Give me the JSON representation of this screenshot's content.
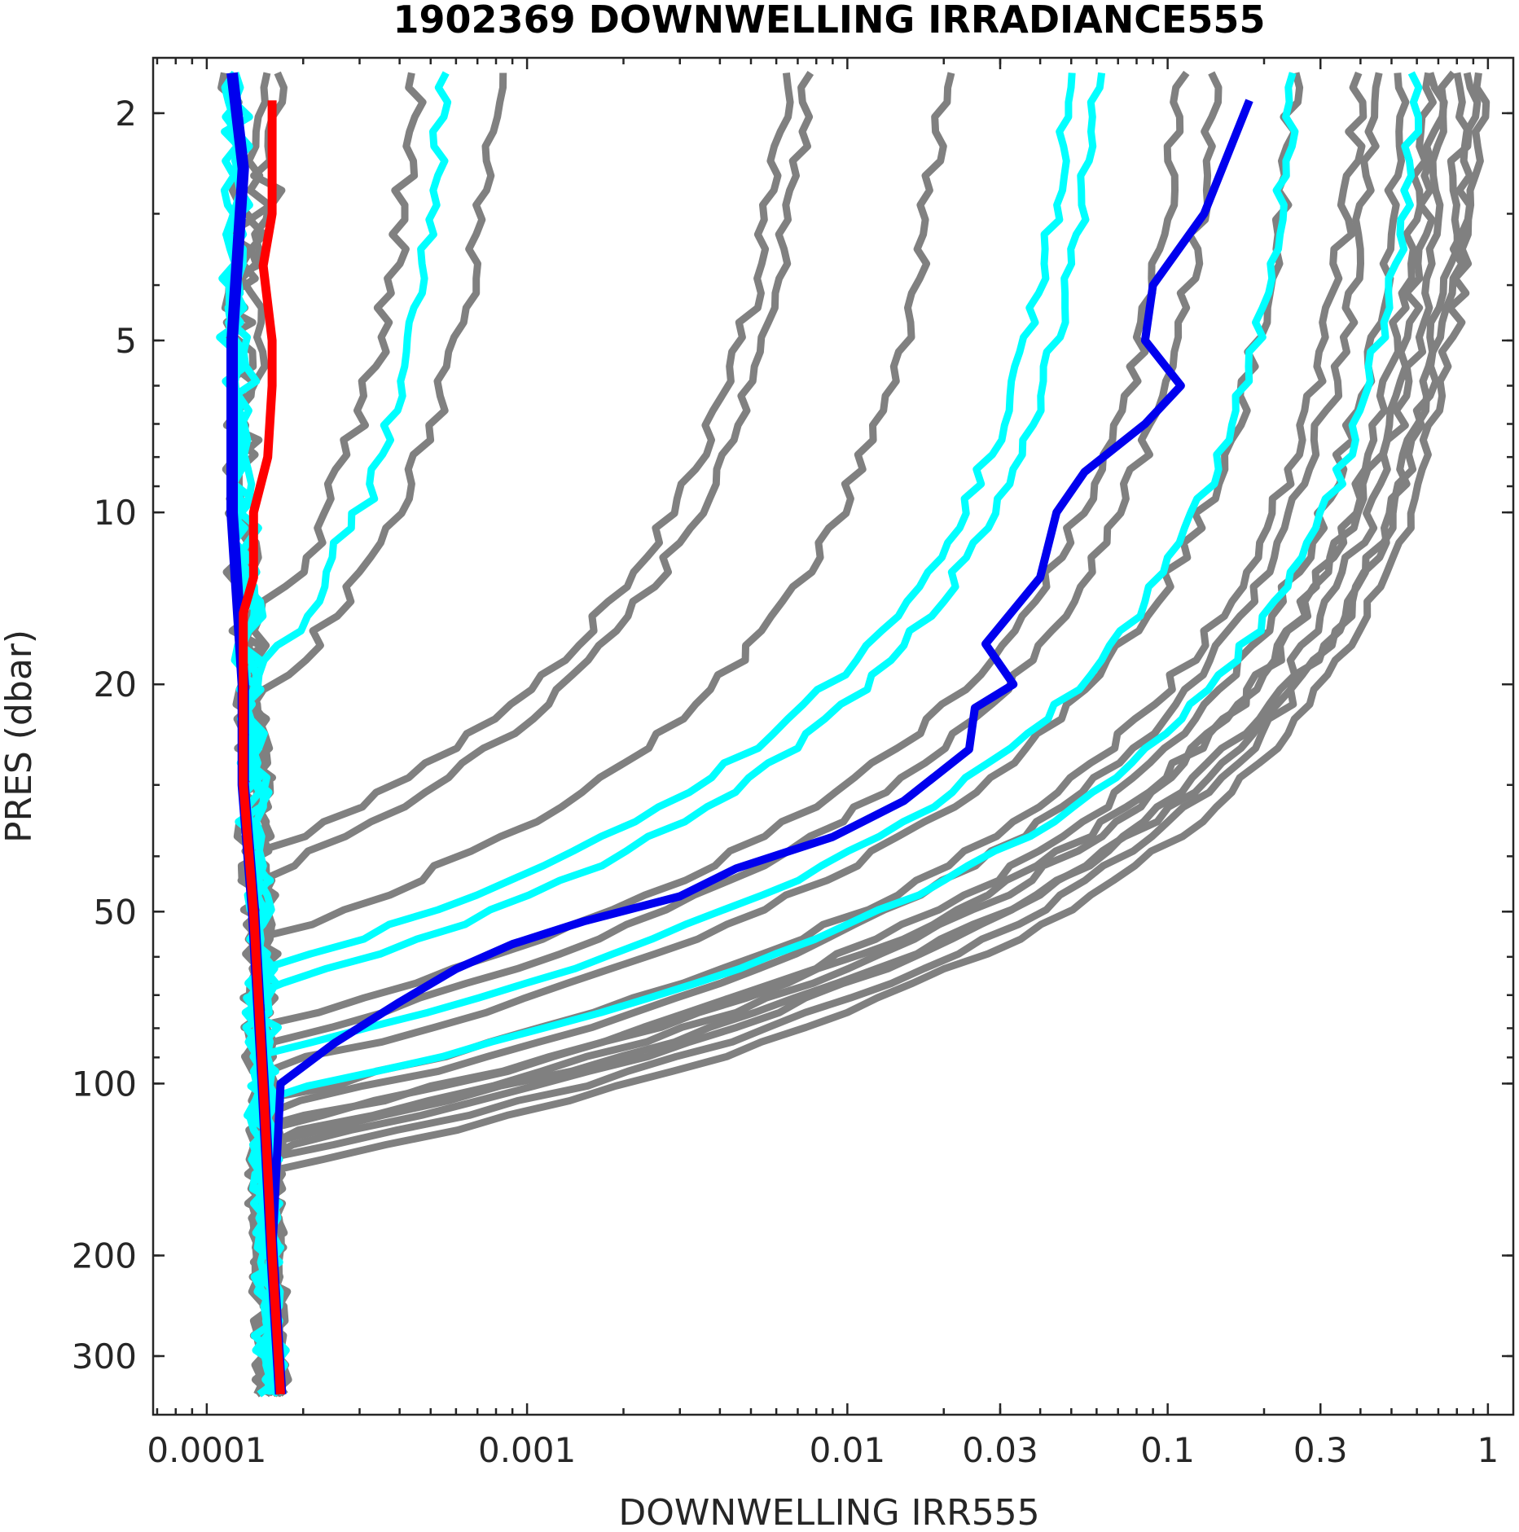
{
  "chart_data": {
    "type": "line",
    "title": "1902369  DOWNWELLING IRRADIANCE555",
    "xlabel": "DOWNWELLING IRR555",
    "ylabel": "PRES (dbar)",
    "x_scale": "log",
    "y_scale": "log",
    "y_reversed": true,
    "xlim": [
      6.8e-05,
      1.2
    ],
    "ylim": [
      1.6,
      380
    ],
    "x_ticks": [
      {
        "value": 0.0001,
        "label": "0.0001"
      },
      {
        "value": 0.001,
        "label": "0.001"
      },
      {
        "value": 0.01,
        "label": "0.01"
      },
      {
        "value": 0.03,
        "label": "0.03"
      },
      {
        "value": 0.1,
        "label": "0.1"
      },
      {
        "value": 0.3,
        "label": "0.3"
      },
      {
        "value": 1,
        "label": "1"
      }
    ],
    "y_ticks": [
      {
        "value": 2,
        "label": "2"
      },
      {
        "value": 5,
        "label": "5"
      },
      {
        "value": 10,
        "label": "10"
      },
      {
        "value": 20,
        "label": "20"
      },
      {
        "value": 50,
        "label": "50"
      },
      {
        "value": 100,
        "label": "100"
      },
      {
        "value": 200,
        "label": "200"
      },
      {
        "value": 300,
        "label": "300"
      }
    ],
    "grid": false,
    "colors": {
      "gray": "#808080",
      "cyan": "#00ffff",
      "blue": "#0000ee",
      "red": "#ff0000"
    },
    "dark_floor": {
      "surface": 0.00012,
      "bottom": 0.00016,
      "noise": 1.2e-05
    },
    "gray_profiles": [
      {
        "surface": 0.00012,
        "k": 0.06
      },
      {
        "surface": 0.00015,
        "k": 0.05
      },
      {
        "surface": 0.00016,
        "k": 0.04
      },
      {
        "surface": 0.00045,
        "k": 0.08
      },
      {
        "surface": 0.0008,
        "k": 0.085
      },
      {
        "surface": 0.0065,
        "k": 0.1
      },
      {
        "surface": 0.0075,
        "k": 0.095
      },
      {
        "surface": 0.02,
        "k": 0.09
      },
      {
        "surface": 0.11,
        "k": 0.085
      },
      {
        "surface": 0.14,
        "k": 0.082
      },
      {
        "surface": 0.25,
        "k": 0.08
      },
      {
        "surface": 0.4,
        "k": 0.075
      },
      {
        "surface": 0.45,
        "k": 0.073
      },
      {
        "surface": 0.55,
        "k": 0.07
      },
      {
        "surface": 0.65,
        "k": 0.068
      },
      {
        "surface": 0.75,
        "k": 0.066
      },
      {
        "surface": 0.85,
        "k": 0.064
      },
      {
        "surface": 0.95,
        "k": 0.062
      },
      {
        "surface": 0.9,
        "k": 0.07
      },
      {
        "surface": 0.7,
        "k": 0.072
      }
    ],
    "cyan_profiles": [
      {
        "surface": 7e-05,
        "k": 0.03
      },
      {
        "surface": 9e-05,
        "k": 0.035
      },
      {
        "surface": 0.0001,
        "k": 0.04
      },
      {
        "surface": 0.00055,
        "k": 0.075
      },
      {
        "surface": 0.05,
        "k": 0.095
      },
      {
        "surface": 0.06,
        "k": 0.09
      },
      {
        "surface": 0.25,
        "k": 0.085
      },
      {
        "surface": 0.6,
        "k": 0.08
      }
    ],
    "blue_surface_profile": [
      {
        "x": 0.00012,
        "y": 1.7
      },
      {
        "x": 0.00013,
        "y": 2.5
      },
      {
        "x": 0.00012,
        "y": 5
      },
      {
        "x": 0.00012,
        "y": 10
      },
      {
        "x": 0.00013,
        "y": 20
      },
      {
        "x": 0.00013,
        "y": 30
      },
      {
        "x": 0.00014,
        "y": 50
      },
      {
        "x": 0.00015,
        "y": 100
      },
      {
        "x": 0.00016,
        "y": 200
      },
      {
        "x": 0.00017,
        "y": 350
      }
    ],
    "blue_profile": [
      {
        "x": 0.18,
        "y": 1.9
      },
      {
        "x": 0.13,
        "y": 3
      },
      {
        "x": 0.09,
        "y": 4
      },
      {
        "x": 0.085,
        "y": 5
      },
      {
        "x": 0.11,
        "y": 6
      },
      {
        "x": 0.085,
        "y": 7
      },
      {
        "x": 0.055,
        "y": 8.5
      },
      {
        "x": 0.045,
        "y": 10
      },
      {
        "x": 0.04,
        "y": 13
      },
      {
        "x": 0.027,
        "y": 17
      },
      {
        "x": 0.033,
        "y": 20
      },
      {
        "x": 0.025,
        "y": 22
      },
      {
        "x": 0.024,
        "y": 26
      },
      {
        "x": 0.015,
        "y": 32
      },
      {
        "x": 0.009,
        "y": 37
      },
      {
        "x": 0.0045,
        "y": 42
      },
      {
        "x": 0.003,
        "y": 47
      },
      {
        "x": 0.0015,
        "y": 52
      },
      {
        "x": 0.0009,
        "y": 57
      },
      {
        "x": 0.0006,
        "y": 63
      },
      {
        "x": 0.0004,
        "y": 72
      },
      {
        "x": 0.00025,
        "y": 85
      },
      {
        "x": 0.00017,
        "y": 100
      },
      {
        "x": 0.00016,
        "y": 200
      },
      {
        "x": 0.00017,
        "y": 350
      }
    ],
    "red_profile": [
      {
        "x": 0.00016,
        "y": 1.9
      },
      {
        "x": 0.00016,
        "y": 3
      },
      {
        "x": 0.00015,
        "y": 3.7
      },
      {
        "x": 0.00016,
        "y": 5
      },
      {
        "x": 0.00016,
        "y": 6
      },
      {
        "x": 0.000155,
        "y": 8
      },
      {
        "x": 0.00014,
        "y": 10
      },
      {
        "x": 0.00014,
        "y": 13
      },
      {
        "x": 0.00013,
        "y": 15
      },
      {
        "x": 0.00013,
        "y": 20
      },
      {
        "x": 0.00013,
        "y": 30
      },
      {
        "x": 0.00014,
        "y": 50
      },
      {
        "x": 0.00015,
        "y": 100
      },
      {
        "x": 0.00016,
        "y": 200
      },
      {
        "x": 0.00017,
        "y": 350
      }
    ]
  }
}
